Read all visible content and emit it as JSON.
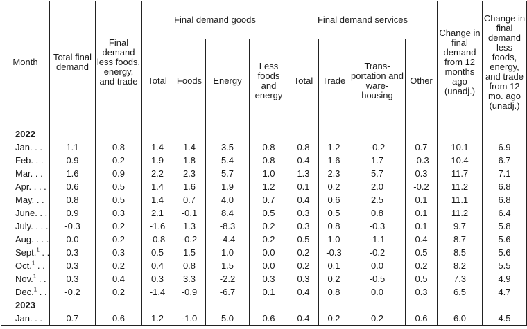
{
  "headers": {
    "month": "Month",
    "total_final_demand": "Total final demand",
    "fd_less": "Final demand less foods, energy, and trade",
    "goods_group": "Final demand goods",
    "goods_total": "Total",
    "goods_foods": "Foods",
    "goods_energy": "Energy",
    "goods_less": "Less foods and energy",
    "services_group": "Final demand services",
    "services_total": "Total",
    "services_trade": "Trade",
    "services_transport": "Trans-portation and ware-housing",
    "services_other": "Other",
    "change_12m": "Change in final demand from 12 months ago (unadj.)",
    "change_less_12m": "Change in final demand less foods, energy, and trade from 12 mo. ago (unadj.)"
  },
  "years": [
    "2022",
    "2023"
  ],
  "rows_2022": [
    {
      "month": "Jan. . .",
      "sup": "",
      "values": [
        "1.1",
        "0.8",
        "1.4",
        "1.4",
        "3.5",
        "0.8",
        "0.8",
        "1.2",
        "-0.2",
        "0.7",
        "10.1",
        "6.9"
      ]
    },
    {
      "month": "Feb. . .",
      "sup": "",
      "values": [
        "0.9",
        "0.2",
        "1.9",
        "1.8",
        "5.4",
        "0.8",
        "0.4",
        "1.6",
        "1.7",
        "-0.3",
        "10.4",
        "6.7"
      ]
    },
    {
      "month": "Mar. . .",
      "sup": "",
      "values": [
        "1.6",
        "0.9",
        "2.2",
        "2.3",
        "5.7",
        "1.0",
        "1.3",
        "2.3",
        "5.7",
        "0.3",
        "11.7",
        "7.1"
      ]
    },
    {
      "month": "Apr. . . .",
      "sup": "",
      "values": [
        "0.6",
        "0.5",
        "1.4",
        "1.6",
        "1.9",
        "1.2",
        "0.1",
        "0.2",
        "2.0",
        "-0.2",
        "11.2",
        "6.8"
      ]
    },
    {
      "month": "May. . .",
      "sup": "",
      "values": [
        "0.8",
        "0.5",
        "1.4",
        "0.7",
        "4.0",
        "0.7",
        "0.4",
        "0.6",
        "2.5",
        "0.1",
        "11.1",
        "6.8"
      ]
    },
    {
      "month": "June. . .",
      "sup": "",
      "values": [
        "0.9",
        "0.3",
        "2.1",
        "-0.1",
        "8.4",
        "0.5",
        "0.3",
        "0.5",
        "0.8",
        "0.1",
        "11.2",
        "6.4"
      ]
    },
    {
      "month": "July. . . .",
      "sup": "",
      "values": [
        "-0.3",
        "0.2",
        "-1.6",
        "1.3",
        "-8.3",
        "0.2",
        "0.3",
        "0.8",
        "-0.3",
        "0.1",
        "9.7",
        "5.8"
      ]
    },
    {
      "month": "Aug. . . .",
      "sup": "",
      "values": [
        "0.0",
        "0.2",
        "-0.8",
        "-0.2",
        "-4.4",
        "0.2",
        "0.5",
        "1.0",
        "-1.1",
        "0.4",
        "8.7",
        "5.6"
      ]
    },
    {
      "month": "Sept.",
      "sup": "1",
      "tail": " . .",
      "values": [
        "0.3",
        "0.3",
        "0.5",
        "1.5",
        "1.0",
        "0.0",
        "0.2",
        "-0.3",
        "-0.2",
        "0.5",
        "8.5",
        "5.6"
      ]
    },
    {
      "month": "Oct.",
      "sup": "1",
      "tail": " . .",
      "values": [
        "0.3",
        "0.2",
        "0.4",
        "0.8",
        "1.5",
        "0.0",
        "0.2",
        "0.1",
        "0.0",
        "0.2",
        "8.2",
        "5.5"
      ]
    },
    {
      "month": "Nov.",
      "sup": "1",
      "tail": " . .",
      "values": [
        "0.3",
        "0.4",
        "0.3",
        "3.3",
        "-2.2",
        "0.3",
        "0.3",
        "0.2",
        "-0.5",
        "0.5",
        "7.3",
        "4.9"
      ]
    },
    {
      "month": "Dec.",
      "sup": "1",
      "tail": " . .",
      "values": [
        "-0.2",
        "0.2",
        "-1.4",
        "-0.9",
        "-6.7",
        "0.1",
        "0.4",
        "0.8",
        "0.0",
        "0.3",
        "6.5",
        "4.7"
      ]
    }
  ],
  "rows_2023": [
    {
      "month": "Jan. . .",
      "sup": "",
      "values": [
        "0.7",
        "0.6",
        "1.2",
        "-1.0",
        "5.0",
        "0.6",
        "0.4",
        "0.2",
        "0.2",
        "0.6",
        "6.0",
        "4.5"
      ]
    }
  ]
}
